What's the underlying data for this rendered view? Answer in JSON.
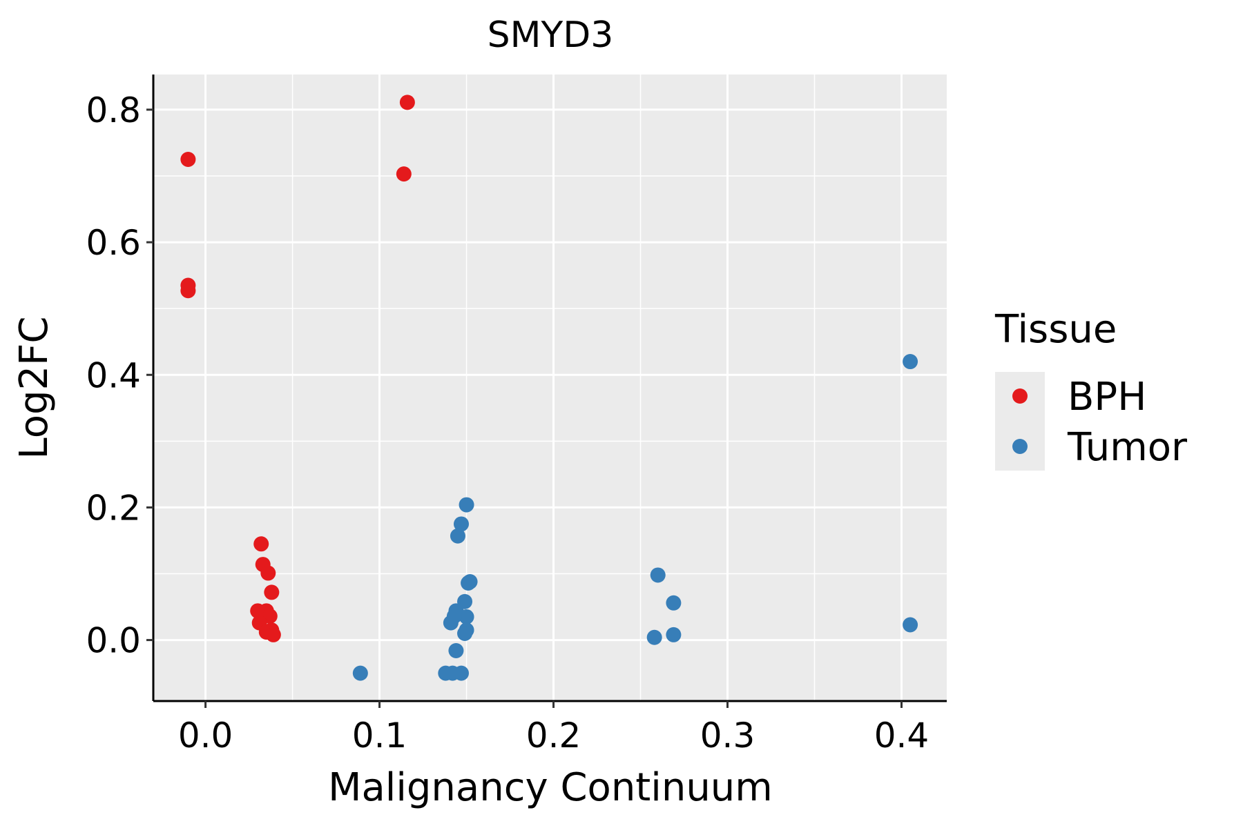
{
  "chart_data": {
    "type": "scatter",
    "title": "SMYD3",
    "xlabel": "Malignancy Continuum",
    "ylabel": "Log2FC",
    "xlim": [
      -0.03,
      0.426
    ],
    "ylim": [
      -0.092,
      0.853
    ],
    "xticks": [
      "0.0",
      "0.1",
      "0.2",
      "0.3",
      "0.4"
    ],
    "xtick_values": [
      0,
      0.1,
      0.2,
      0.3,
      0.4
    ],
    "yticks": [
      "0.0",
      "0.2",
      "0.4",
      "0.6",
      "0.8"
    ],
    "ytick_values": [
      0,
      0.2,
      0.4,
      0.6,
      0.8
    ],
    "grid": true,
    "legend": {
      "title": "Tissue",
      "placement": "right"
    },
    "series": [
      {
        "name": "BPH",
        "color": "#E41A1C",
        "points": [
          [
            -0.01,
            0.725
          ],
          [
            -0.01,
            0.535
          ],
          [
            -0.01,
            0.527
          ],
          [
            0.116,
            0.811
          ],
          [
            0.114,
            0.703
          ],
          [
            0.032,
            0.145
          ],
          [
            0.033,
            0.114
          ],
          [
            0.036,
            0.101
          ],
          [
            0.038,
            0.072
          ],
          [
            0.03,
            0.044
          ],
          [
            0.035,
            0.044
          ],
          [
            0.037,
            0.036
          ],
          [
            0.031,
            0.026
          ],
          [
            0.038,
            0.015
          ],
          [
            0.035,
            0.012
          ],
          [
            0.039,
            0.008
          ]
        ]
      },
      {
        "name": "Tumor",
        "color": "#377EB8",
        "points": [
          [
            0.15,
            0.204
          ],
          [
            0.147,
            0.175
          ],
          [
            0.145,
            0.157
          ],
          [
            0.152,
            0.088
          ],
          [
            0.151,
            0.086
          ],
          [
            0.149,
            0.058
          ],
          [
            0.144,
            0.044
          ],
          [
            0.15,
            0.035
          ],
          [
            0.141,
            0.026
          ],
          [
            0.143,
            0.036
          ],
          [
            0.15,
            0.015
          ],
          [
            0.149,
            0.01
          ],
          [
            0.144,
            -0.016
          ],
          [
            0.089,
            -0.05
          ],
          [
            0.138,
            -0.05
          ],
          [
            0.142,
            -0.05
          ],
          [
            0.147,
            -0.05
          ],
          [
            0.26,
            0.098
          ],
          [
            0.269,
            0.056
          ],
          [
            0.258,
            0.004
          ],
          [
            0.269,
            0.008
          ],
          [
            0.405,
            0.42
          ],
          [
            0.405,
            0.023
          ]
        ]
      }
    ]
  }
}
